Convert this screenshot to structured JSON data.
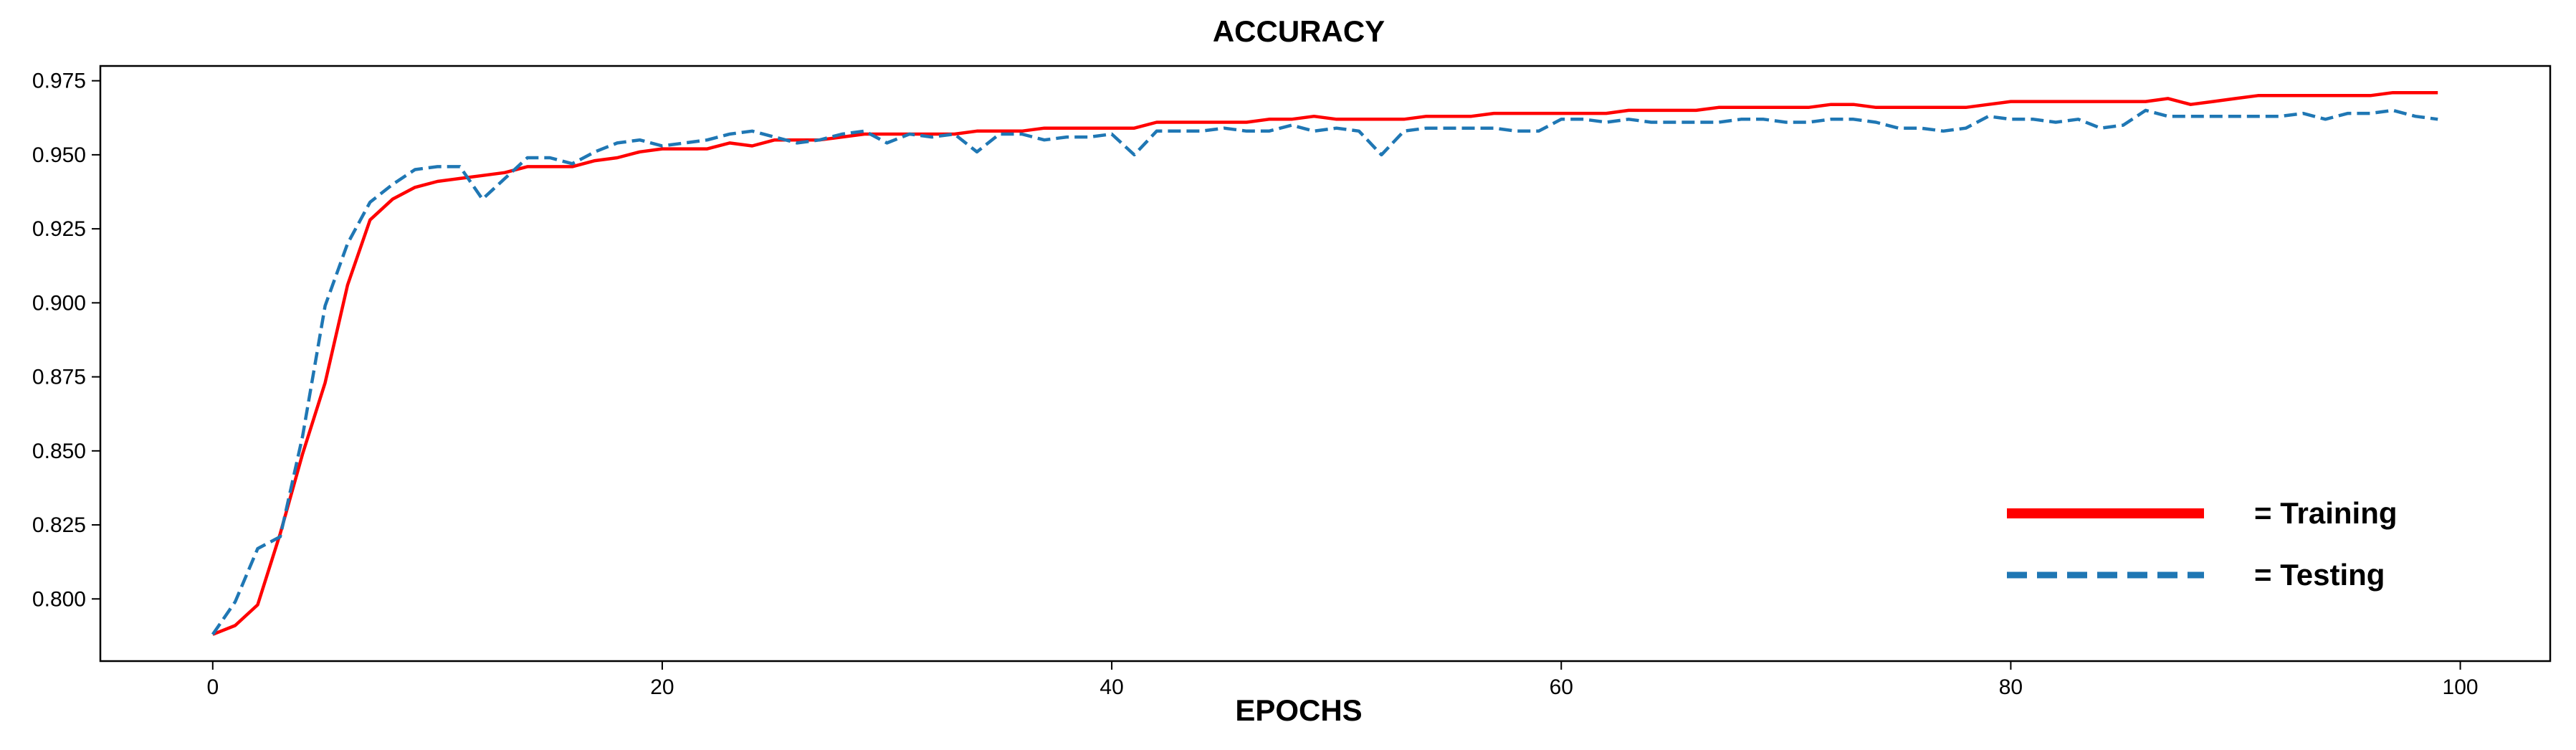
{
  "chart_data": {
    "type": "line",
    "title": "ACCURACY",
    "xlabel": "EPOCHS",
    "ylabel": "",
    "xlim": [
      -5,
      104
    ],
    "ylim": [
      0.779,
      0.98
    ],
    "xticks": [
      0,
      20,
      40,
      60,
      80,
      100
    ],
    "yticks": [
      0.8,
      0.825,
      0.85,
      0.875,
      0.9,
      0.925,
      0.95,
      0.975
    ],
    "xtick_labels": [
      "0",
      "20",
      "40",
      "60",
      "80",
      "100"
    ],
    "ytick_labels": [
      "0.800",
      "0.825",
      "0.850",
      "0.875",
      "0.900",
      "0.925",
      "0.950",
      "0.975"
    ],
    "grid": false,
    "legend_position": "bottom-right",
    "series": [
      {
        "name": "= Training",
        "color": "#ff0000",
        "style": "solid",
        "x": [
          0,
          1,
          2,
          3,
          4,
          5,
          6,
          7,
          8,
          9,
          10,
          11,
          12,
          13,
          14,
          15,
          16,
          17,
          18,
          19,
          20,
          21,
          22,
          23,
          24,
          25,
          26,
          27,
          28,
          29,
          30,
          31,
          32,
          33,
          34,
          35,
          36,
          37,
          38,
          39,
          40,
          41,
          42,
          43,
          44,
          45,
          46,
          47,
          48,
          49,
          50,
          51,
          52,
          53,
          54,
          55,
          56,
          57,
          58,
          59,
          60,
          61,
          62,
          63,
          64,
          65,
          66,
          67,
          68,
          69,
          70,
          71,
          72,
          73,
          74,
          75,
          76,
          77,
          78,
          79,
          80,
          81,
          82,
          83,
          84,
          85,
          86,
          87,
          88,
          89,
          90,
          91,
          92,
          93,
          94,
          95,
          96,
          97,
          98,
          99
        ],
        "values": [
          0.788,
          0.791,
          0.798,
          0.822,
          0.849,
          0.873,
          0.906,
          0.928,
          0.935,
          0.939,
          0.941,
          0.942,
          0.943,
          0.944,
          0.946,
          0.946,
          0.946,
          0.948,
          0.949,
          0.951,
          0.952,
          0.952,
          0.952,
          0.954,
          0.953,
          0.955,
          0.955,
          0.955,
          0.956,
          0.957,
          0.957,
          0.957,
          0.957,
          0.957,
          0.958,
          0.958,
          0.958,
          0.959,
          0.959,
          0.959,
          0.959,
          0.959,
          0.961,
          0.961,
          0.961,
          0.961,
          0.961,
          0.962,
          0.962,
          0.963,
          0.962,
          0.962,
          0.962,
          0.962,
          0.963,
          0.963,
          0.963,
          0.964,
          0.964,
          0.964,
          0.964,
          0.964,
          0.964,
          0.965,
          0.965,
          0.965,
          0.965,
          0.966,
          0.966,
          0.966,
          0.966,
          0.966,
          0.967,
          0.967,
          0.966,
          0.966,
          0.966,
          0.966,
          0.966,
          0.967,
          0.968,
          0.968,
          0.968,
          0.968,
          0.968,
          0.968,
          0.968,
          0.969,
          0.967,
          0.968,
          0.969,
          0.97,
          0.97,
          0.97,
          0.97,
          0.97,
          0.97,
          0.971,
          0.971,
          0.971
        ]
      },
      {
        "name": "= Testing",
        "color": "#1f77b4",
        "style": "dashed",
        "x": [
          0,
          1,
          2,
          3,
          4,
          5,
          6,
          7,
          8,
          9,
          10,
          11,
          12,
          13,
          14,
          15,
          16,
          17,
          18,
          19,
          20,
          21,
          22,
          23,
          24,
          25,
          26,
          27,
          28,
          29,
          30,
          31,
          32,
          33,
          34,
          35,
          36,
          37,
          38,
          39,
          40,
          41,
          42,
          43,
          44,
          45,
          46,
          47,
          48,
          49,
          50,
          51,
          52,
          53,
          54,
          55,
          56,
          57,
          58,
          59,
          60,
          61,
          62,
          63,
          64,
          65,
          66,
          67,
          68,
          69,
          70,
          71,
          72,
          73,
          74,
          75,
          76,
          77,
          78,
          79,
          80,
          81,
          82,
          83,
          84,
          85,
          86,
          87,
          88,
          89,
          90,
          91,
          92,
          93,
          94,
          95,
          96,
          97,
          98,
          99
        ],
        "values": [
          0.788,
          0.799,
          0.817,
          0.821,
          0.855,
          0.899,
          0.92,
          0.934,
          0.94,
          0.945,
          0.946,
          0.946,
          0.935,
          0.942,
          0.949,
          0.949,
          0.947,
          0.951,
          0.954,
          0.955,
          0.953,
          0.954,
          0.955,
          0.957,
          0.958,
          0.956,
          0.954,
          0.955,
          0.957,
          0.958,
          0.954,
          0.957,
          0.956,
          0.957,
          0.951,
          0.957,
          0.957,
          0.955,
          0.956,
          0.956,
          0.957,
          0.95,
          0.958,
          0.958,
          0.958,
          0.959,
          0.958,
          0.958,
          0.96,
          0.958,
          0.959,
          0.958,
          0.95,
          0.958,
          0.959,
          0.959,
          0.959,
          0.959,
          0.958,
          0.958,
          0.962,
          0.962,
          0.961,
          0.962,
          0.961,
          0.961,
          0.961,
          0.961,
          0.962,
          0.962,
          0.961,
          0.961,
          0.962,
          0.962,
          0.961,
          0.959,
          0.959,
          0.958,
          0.959,
          0.963,
          0.962,
          0.962,
          0.961,
          0.962,
          0.959,
          0.96,
          0.965,
          0.963,
          0.963,
          0.963,
          0.963,
          0.963,
          0.963,
          0.964,
          0.962,
          0.964,
          0.964,
          0.965,
          0.963,
          0.962
        ]
      }
    ]
  }
}
